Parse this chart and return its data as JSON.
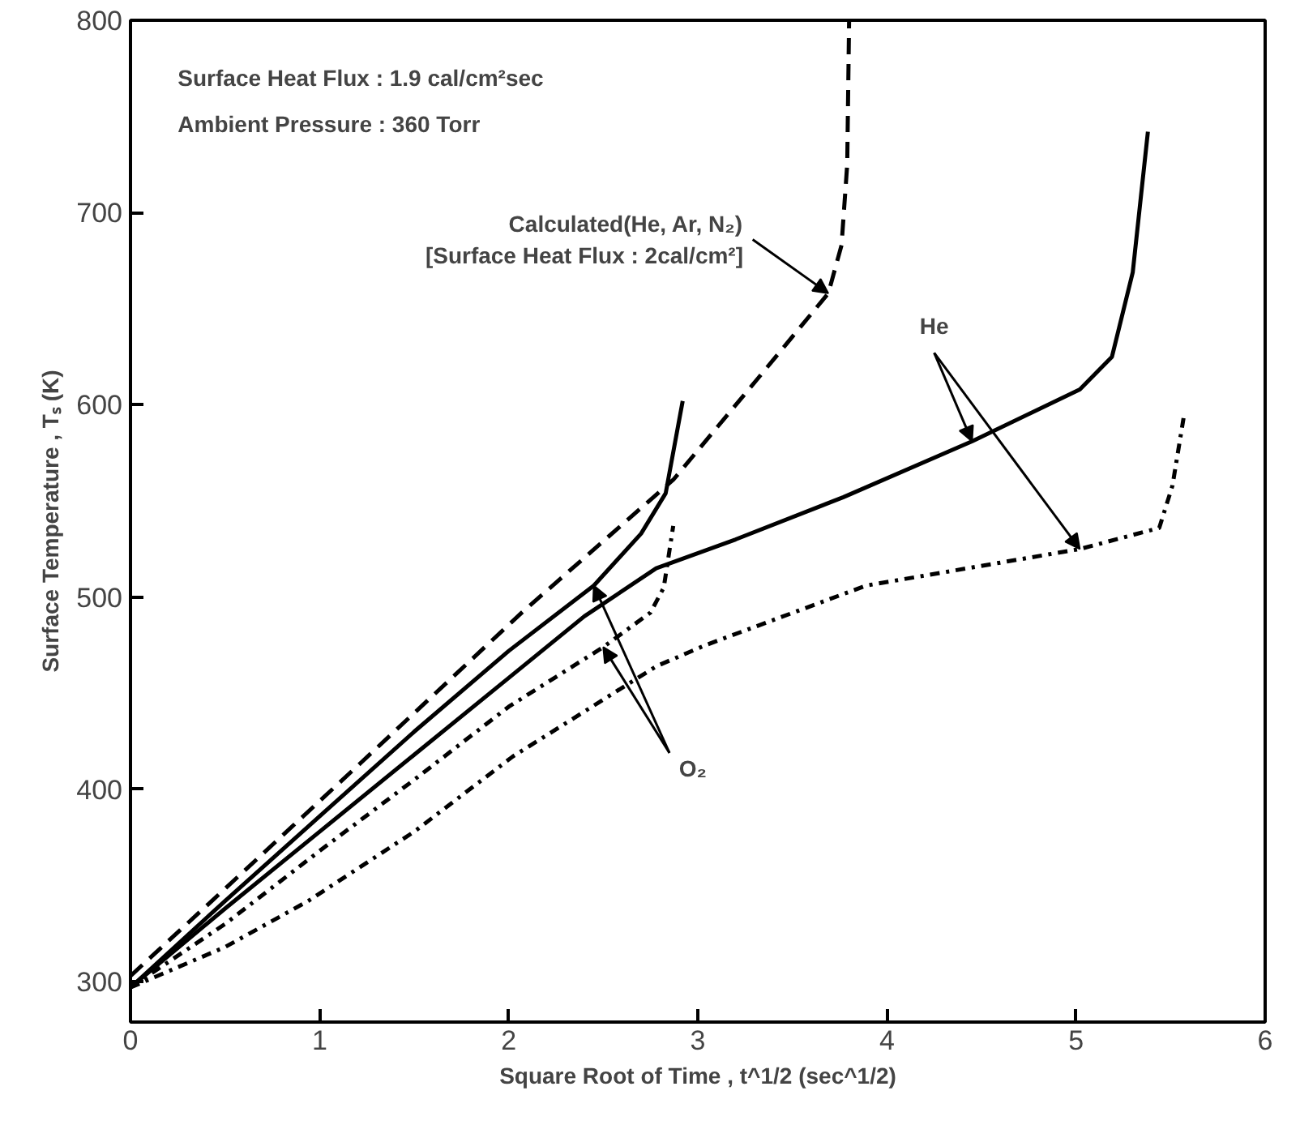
{
  "chart_data": {
    "type": "line",
    "xlabel": "Square Root of Time , t^1/2 (sec^1/2)",
    "ylabel": "Surface Temperature , Tₛ (K)",
    "xlim": [
      0,
      6
    ],
    "ylim": [
      279,
      800
    ],
    "xticks": [
      0,
      1,
      2,
      3,
      4,
      5,
      6
    ],
    "yticks": [
      300,
      400,
      500,
      600,
      700,
      800
    ],
    "grid": false,
    "marker": "none",
    "annotations": [
      "Surface Heat Flux : 1.9 cal/cm²sec",
      "Ambient Pressure : 360 Torr",
      {
        "text": "Calculated(He, Ar, N₂)\n[Surface Heat Flux : 2cal/cm²]",
        "x": 3.69,
        "y": 658
      },
      {
        "text": "O₂",
        "x": 2.45,
        "y": 506
      },
      {
        "text": "He",
        "x": 4.45,
        "y": 581
      }
    ],
    "series": [
      {
        "color": "#000000",
        "line_style": "dashed",
        "x": [
          0,
          0.43,
          1.22,
          2.07,
          2.87,
          3.32,
          3.69,
          3.76,
          3.79,
          3.8
        ],
        "values": [
          303,
          342,
          414,
          492,
          561,
          614,
          658,
          683,
          725,
          800
        ]
      },
      {
        "color": "#000000",
        "line_style": "solid",
        "x": [
          0,
          0.5,
          1,
          1.5,
          2,
          2.45,
          2.7,
          2.83,
          2.92
        ],
        "values": [
          297,
          342,
          386,
          430,
          472,
          506,
          533,
          554,
          602
        ]
      },
      {
        "color": "#000000",
        "line_style": "solid",
        "x": [
          0,
          0.5,
          1,
          1.5,
          2,
          2.4,
          2.78,
          3.2,
          3.77,
          4.45,
          5.02,
          5.19,
          5.3,
          5.38
        ],
        "values": [
          297,
          338,
          378,
          418,
          458,
          490,
          515,
          530,
          552,
          581,
          608,
          625,
          669,
          742
        ]
      },
      {
        "color": "#000000",
        "line_style": "dashdot",
        "x": [
          0,
          0.5,
          1,
          1.5,
          2,
          2.5,
          2.75,
          2.82,
          2.87
        ],
        "values": [
          297,
          330,
          368,
          405,
          443,
          474,
          492,
          505,
          537
        ]
      },
      {
        "color": "#000000",
        "line_style": "dashdot",
        "x": [
          0,
          0.5,
          0.94,
          1.5,
          2.02,
          2.78,
          3.04,
          3.89,
          5.02,
          5.44,
          5.51,
          5.57
        ],
        "values": [
          297,
          318,
          342,
          378,
          417,
          464,
          475,
          506,
          525,
          536,
          558,
          594
        ]
      }
    ]
  }
}
